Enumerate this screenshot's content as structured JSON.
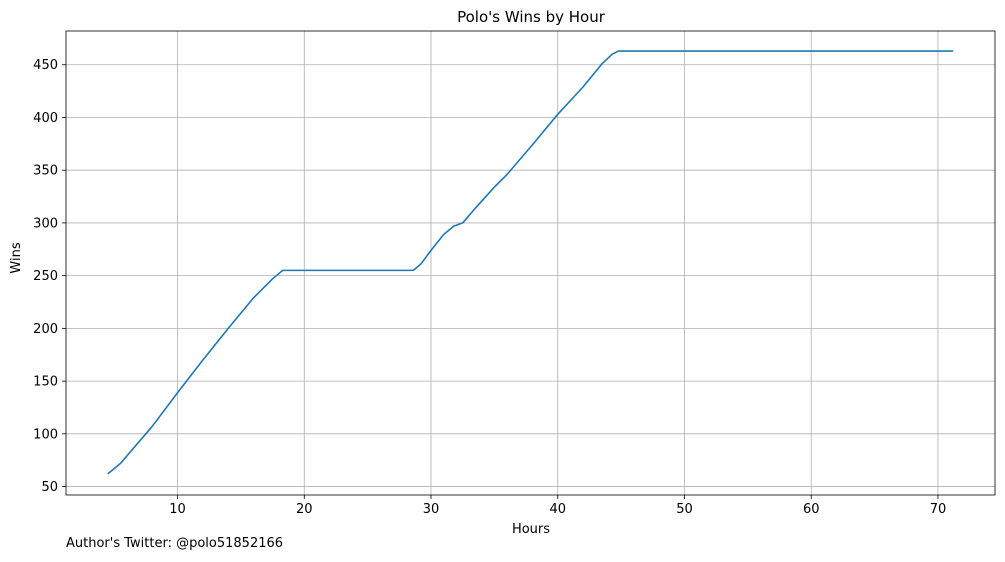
{
  "chart_data": {
    "type": "line",
    "title": "Polo's Wins by Hour",
    "xlabel": "Hours",
    "ylabel": "Wins",
    "xlim": [
      1.2,
      74.5
    ],
    "ylim": [
      42,
      482
    ],
    "grid": true,
    "legend": "none",
    "x_ticks": [
      10,
      20,
      30,
      40,
      50,
      60,
      70
    ],
    "y_ticks": [
      50,
      100,
      150,
      200,
      250,
      300,
      350,
      400,
      450
    ],
    "series": [
      {
        "color": "#1f77b4",
        "x": [
          4.5,
          5.5,
          8.0,
          10.0,
          12.0,
          14.0,
          16.0,
          17.5,
          18.3,
          18.6,
          20.0,
          25.0,
          28.6,
          29.2,
          30.0,
          31.0,
          31.8,
          32.5,
          33.5,
          35.0,
          36.0,
          38.0,
          40.0,
          42.0,
          43.5,
          44.3,
          44.8,
          50.0,
          60.0,
          71.2
        ],
        "values": [
          62,
          72,
          107,
          139,
          170,
          200,
          229,
          247,
          255,
          255,
          255,
          255,
          255,
          261,
          274,
          289,
          297,
          300,
          314,
          334,
          346,
          374,
          403,
          429,
          451,
          460,
          463,
          463,
          463,
          463
        ]
      }
    ]
  },
  "footer": {
    "note": "Author's Twitter: @polo51852166"
  }
}
